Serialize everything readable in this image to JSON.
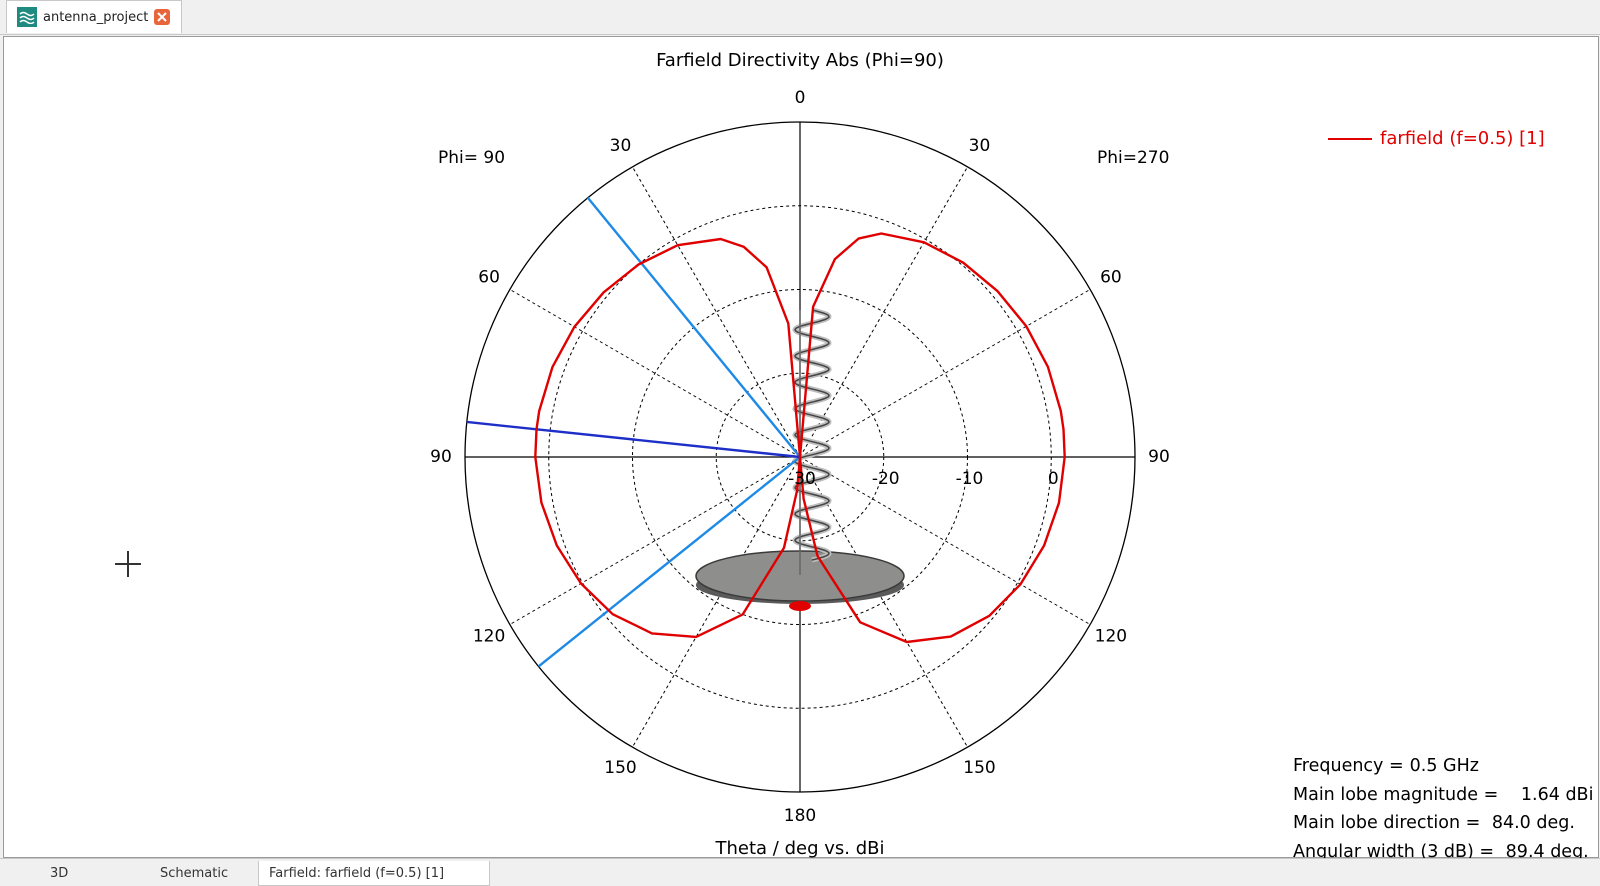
{
  "window": {
    "tab_title": "antenna_project",
    "tab_icon": "farfield-app-icon"
  },
  "bottom_tabs": [
    {
      "label": "3D",
      "active": false
    },
    {
      "label": "Schematic",
      "active": false
    },
    {
      "label": "Farfield: farfield (f=0.5) [1]",
      "active": true
    }
  ],
  "plot": {
    "title": "Farfield Directivity Abs (Phi=90)",
    "caption": "Theta / deg vs. dBi",
    "phi_left": "Phi= 90",
    "phi_right": "Phi=270",
    "legend": "farfield (f=0.5) [1]"
  },
  "info": [
    {
      "key": "Frequency =",
      "value": "0.5 GHz"
    },
    {
      "key": "Main lobe magnitude =",
      "value": "   1.64 dBi"
    },
    {
      "key": "Main lobe direction =",
      "value": " 84.0 deg."
    },
    {
      "key": "Angular width (3 dB) =",
      "value": " 89.4 deg."
    }
  ],
  "colors": {
    "trace": "#e00000",
    "main_lobe_line": "#1e2fc8",
    "beamwidth_lines": "#1e8ae6",
    "accent": "#1f8a80",
    "close": "#e8643a"
  },
  "chart_data": {
    "type": "line",
    "coordinate_system": "polar",
    "title": "Farfield Directivity Abs (Phi=90)",
    "xlabel": "Theta / deg vs. dBi",
    "radial_ticks": [
      "-30",
      "-20",
      "-10",
      "0"
    ],
    "radial_range_dbi": [
      -30,
      10
    ],
    "angle_ticks": {
      "right": [
        "0",
        "30",
        "60",
        "90",
        "120",
        "150",
        "180"
      ],
      "left": [
        "30",
        "60",
        "90",
        "120",
        "150"
      ]
    },
    "series": [
      {
        "name": "farfield (f=0.5) [1]",
        "right_half": {
          "theta_deg": [
            0,
            5,
            10,
            15,
            20,
            30,
            40,
            50,
            60,
            70,
            80,
            84,
            90,
            100,
            110,
            120,
            130,
            140,
            150,
            160,
            170,
            175,
            180
          ],
          "dbi": [
            -30,
            -12,
            -6,
            -3,
            -1.6,
            -0.4,
            0.3,
            0.8,
            1.2,
            1.5,
            1.62,
            1.64,
            1.6,
            1.4,
            1.0,
            0.4,
            -0.5,
            -2,
            -4.5,
            -9,
            -18,
            -25,
            -30
          ]
        },
        "left_half": {
          "theta_deg": [
            0,
            5,
            10,
            15,
            20,
            30,
            40,
            50,
            60,
            70,
            80,
            84,
            90,
            100,
            110,
            120,
            130,
            140,
            150,
            160,
            170,
            175,
            180
          ],
          "dbi": [
            -30,
            -14,
            -7,
            -4,
            -2.3,
            -0.8,
            0,
            0.6,
            1.1,
            1.45,
            1.62,
            1.64,
            1.6,
            1.35,
            0.9,
            0.2,
            -0.8,
            -2.5,
            -5.2,
            -10,
            -19,
            -26,
            -30
          ]
        }
      }
    ],
    "markers": {
      "main_lobe_direction_deg": 84.0,
      "beamwidth_lines_deg": [
        39.3,
        128.7
      ]
    }
  }
}
